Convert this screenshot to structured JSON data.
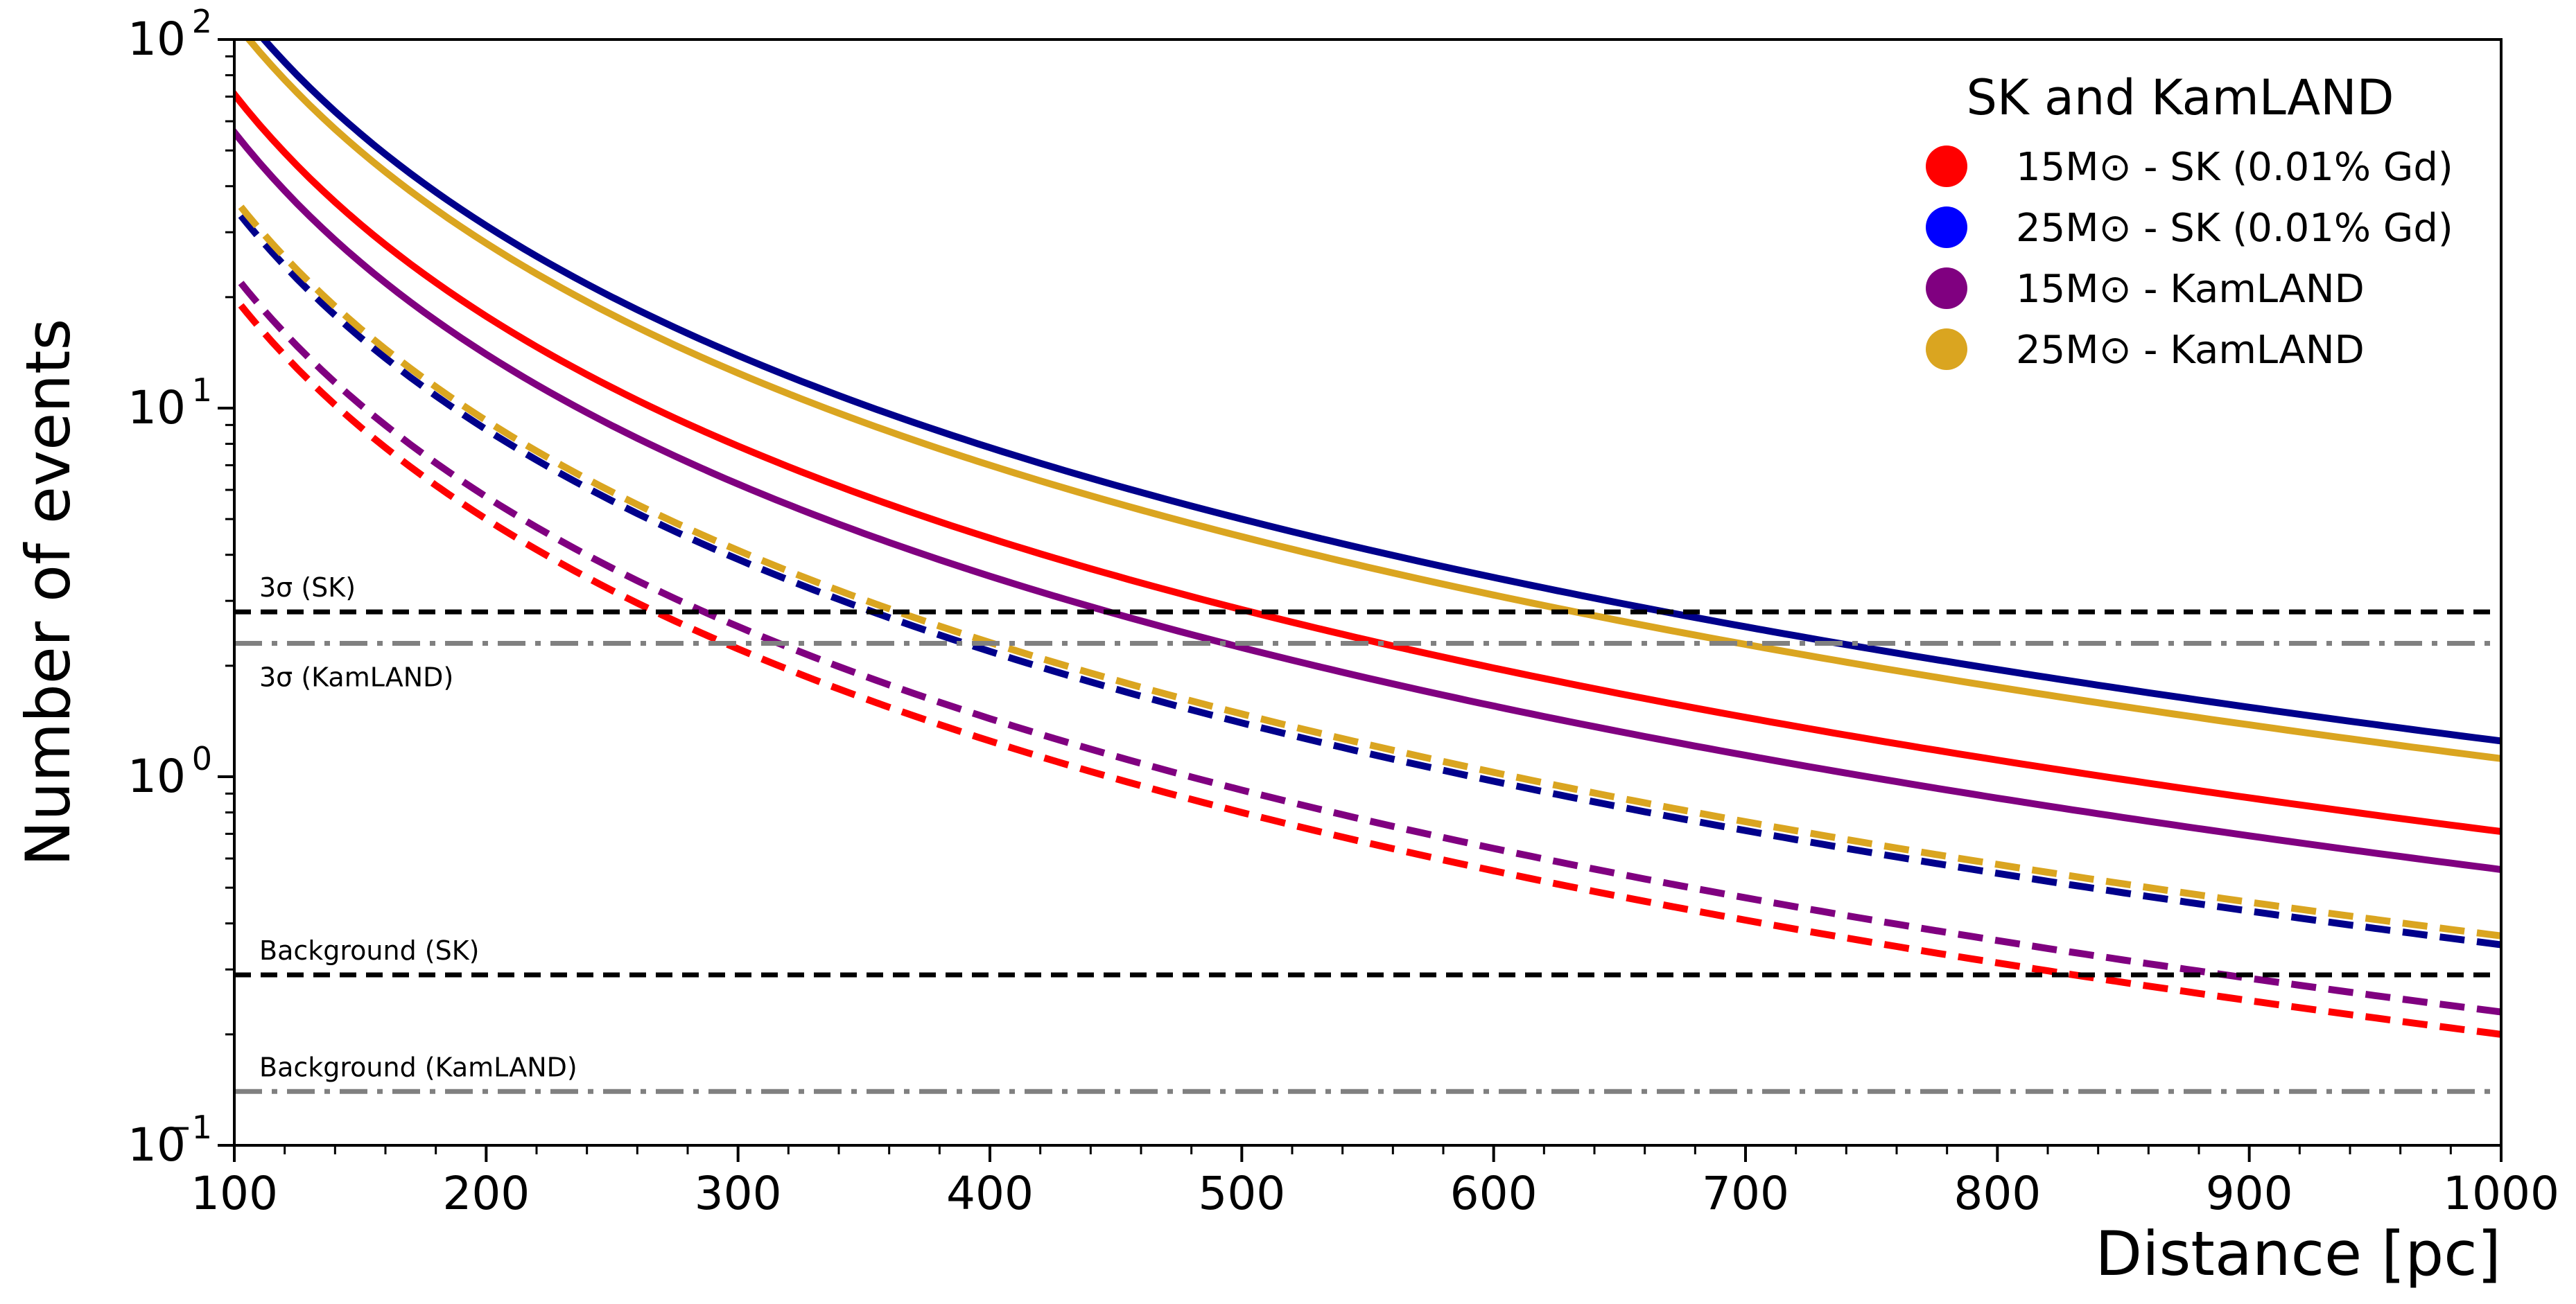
{
  "chart_data": {
    "type": "line",
    "xlabel": "Distance [pc]",
    "ylabel": "Number of events",
    "xlim": [
      100,
      1000
    ],
    "ylim": [
      0.1,
      100
    ],
    "yscale": "log",
    "grid": false,
    "legend": {
      "title": "SK and KamLAND",
      "placement": "top-right",
      "entries": [
        {
          "label": "15M⊙ - SK (0.01% Gd)",
          "color": "#ff0000"
        },
        {
          "label": "25M⊙ - SK (0.01% Gd)",
          "color": "#0000ff"
        },
        {
          "label": "15M⊙ - KamLAND",
          "color": "#800080"
        },
        {
          "label": "25M⊙ - KamLAND",
          "color": "#daa520"
        }
      ]
    },
    "x_ticks": [
      100,
      200,
      300,
      400,
      500,
      600,
      700,
      800,
      900,
      1000
    ],
    "x_tick_labels": [
      "100",
      "200",
      "300",
      "400",
      "500",
      "600",
      "700",
      "800",
      "900",
      "1000"
    ],
    "y_ticks": [
      {
        "value": 0.1,
        "base": "10",
        "exp": "−1"
      },
      {
        "value": 1,
        "base": "10",
        "exp": "0"
      },
      {
        "value": 10,
        "base": "10",
        "exp": "1"
      },
      {
        "value": 100,
        "base": "10",
        "exp": "2"
      }
    ],
    "series": [
      {
        "color": "#00008b",
        "style": "solid",
        "value_at_100pc": 125
      },
      {
        "color": "#daa520",
        "style": "solid",
        "value_at_100pc": 112
      },
      {
        "color": "#ff0000",
        "style": "solid",
        "value_at_100pc": 71
      },
      {
        "color": "#800080",
        "style": "solid",
        "value_at_100pc": 56
      },
      {
        "color": "#00008b",
        "style": "dashed",
        "value_at_100pc": 35
      },
      {
        "color": "#daa520",
        "style": "dashed",
        "value_at_100pc": 37
      },
      {
        "color": "#ff0000",
        "style": "dashed",
        "value_at_100pc": 20
      },
      {
        "color": "#800080",
        "style": "dashed",
        "value_at_100pc": 23
      }
    ],
    "horizontal_lines": [
      {
        "label": "3σ (SK)",
        "value": 2.8,
        "style": "dashed",
        "color": "#000000",
        "label_position": "above"
      },
      {
        "label": "3σ (KamLAND)",
        "value": 2.3,
        "style": "dashdot",
        "color": "#808080",
        "label_position": "below"
      },
      {
        "label": "Background (SK)",
        "value": 0.29,
        "style": "dashed",
        "color": "#000000",
        "label_position": "above"
      },
      {
        "label": "Background (KamLAND)",
        "value": 0.14,
        "style": "dashdot",
        "color": "#808080",
        "label_position": "above"
      }
    ]
  }
}
